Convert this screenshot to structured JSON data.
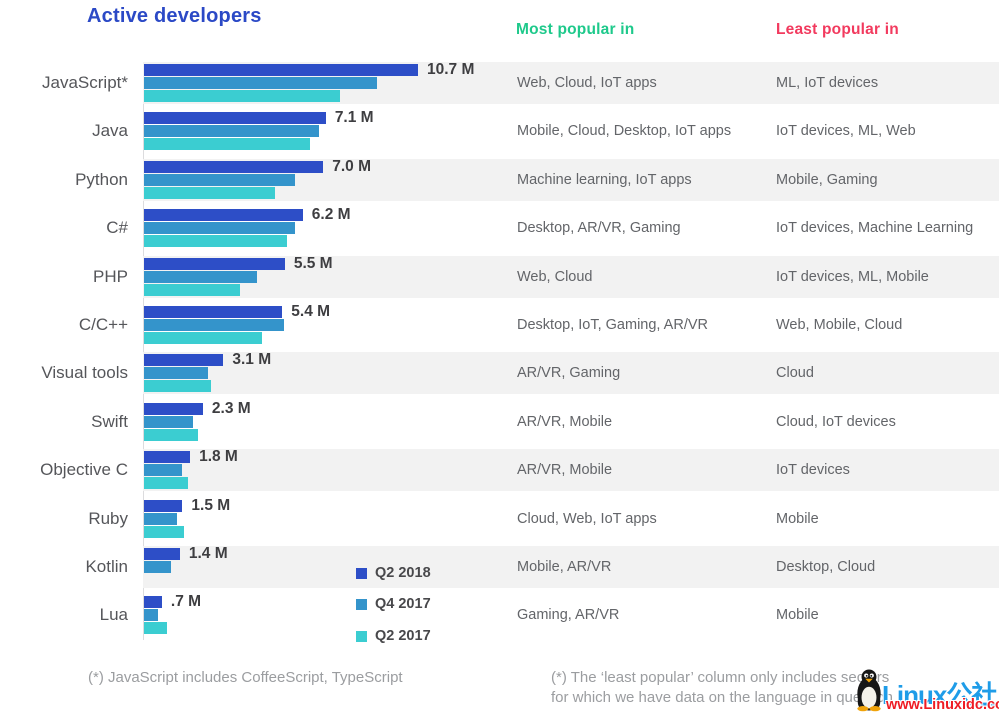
{
  "title": "Active developers",
  "columns": {
    "most_header": "Most popular in",
    "least_header": "Least popular in"
  },
  "colors": {
    "title": "#2b49c6",
    "most_header": "#1ec98b",
    "least_header": "#f23a5e",
    "q2_2018": "#2d4ec7",
    "q4_2017": "#3494cb",
    "q2_2017": "#3bcdd1",
    "stripe": "#f2f2f2",
    "watermark_blue": "#1e9ce8",
    "watermark_red": "#ee1c24"
  },
  "chart_data": {
    "type": "bar",
    "orientation": "horizontal",
    "unit": "millions of developers",
    "title": "Active developers",
    "series_names": [
      "Q2 2018",
      "Q4 2017",
      "Q2 2017"
    ],
    "note": "Q2 2018 values are labeled on the chart; Q4 2017 and Q2 2017 values are estimated from bar lengths; Kotlin has no Q2 2017 bar",
    "xlim": [
      0,
      11
    ],
    "rows": [
      {
        "language": "JavaScript*",
        "value_label": "10.7 M",
        "q2_2018": 10.7,
        "q4_2017": 9.1,
        "q2_2017": 7.65,
        "most": "Web, Cloud, IoT apps",
        "least": "ML, IoT devices"
      },
      {
        "language": "Java",
        "value_label": "7.1 M",
        "q2_2018": 7.1,
        "q4_2017": 6.85,
        "q2_2017": 6.5,
        "most": "Mobile, Cloud, Desktop, IoT apps",
        "least": "IoT devices, ML, Web"
      },
      {
        "language": "Python",
        "value_label": "7.0 M",
        "q2_2018": 7.0,
        "q4_2017": 5.9,
        "q2_2017": 5.1,
        "most": "Machine learning, IoT apps",
        "least": "Mobile, Gaming"
      },
      {
        "language": "C#",
        "value_label": "6.2 M",
        "q2_2018": 6.2,
        "q4_2017": 5.9,
        "q2_2017": 5.6,
        "most": "Desktop, AR/VR, Gaming",
        "least": "IoT devices, Machine Learning"
      },
      {
        "language": "PHP",
        "value_label": "5.5 M",
        "q2_2018": 5.5,
        "q4_2017": 4.4,
        "q2_2017": 3.75,
        "most": "Web, Cloud",
        "least": "IoT devices, ML, Mobile"
      },
      {
        "language": "C/C++",
        "value_label": "5.4 M",
        "q2_2018": 5.4,
        "q4_2017": 5.45,
        "q2_2017": 4.6,
        "most": "Desktop, IoT, Gaming, AR/VR",
        "least": "Web, Mobile, Cloud"
      },
      {
        "language": "Visual tools",
        "value_label": "3.1 M",
        "q2_2018": 3.1,
        "q4_2017": 2.5,
        "q2_2017": 2.6,
        "most": "AR/VR, Gaming",
        "least": "Cloud"
      },
      {
        "language": "Swift",
        "value_label": "2.3 M",
        "q2_2018": 2.3,
        "q4_2017": 1.9,
        "q2_2017": 2.1,
        "most": "AR/VR, Mobile",
        "least": "Cloud, IoT devices"
      },
      {
        "language": "Objective C",
        "value_label": "1.8 M",
        "q2_2018": 1.8,
        "q4_2017": 1.5,
        "q2_2017": 1.7,
        "most": "AR/VR, Mobile",
        "least": "IoT devices"
      },
      {
        "language": "Ruby",
        "value_label": "1.5 M",
        "q2_2018": 1.5,
        "q4_2017": 1.3,
        "q2_2017": 1.55,
        "most": "Cloud, Web, IoT apps",
        "least": "Mobile"
      },
      {
        "language": "Kotlin",
        "value_label": "1.4 M",
        "q2_2018": 1.4,
        "q4_2017": 1.05,
        "q2_2017": null,
        "most": "Mobile, AR/VR",
        "least": "Desktop, Cloud"
      },
      {
        "language": "Lua",
        "value_label": ".7 M",
        "q2_2018": 0.7,
        "q4_2017": 0.55,
        "q2_2017": 0.9,
        "most": "Gaming, AR/VR",
        "least": "Mobile"
      }
    ]
  },
  "legend": {
    "position": "bottom-center-left",
    "items": [
      {
        "label": "Q2 2018",
        "color": "#2d4ec7"
      },
      {
        "label": "Q4 2017",
        "color": "#3494cb"
      },
      {
        "label": "Q2 2017",
        "color": "#3bcdd1"
      }
    ]
  },
  "footnotes": {
    "left": "(*) JavaScript includes CoffeeScript, TypeScript",
    "right_line1": "(*) The ‘least popular’ column only includes sectors",
    "right_line2": "for which we have data on the language in question"
  },
  "watermark": {
    "name": "Linux公社",
    "url": "www.Linuxidc.com"
  }
}
